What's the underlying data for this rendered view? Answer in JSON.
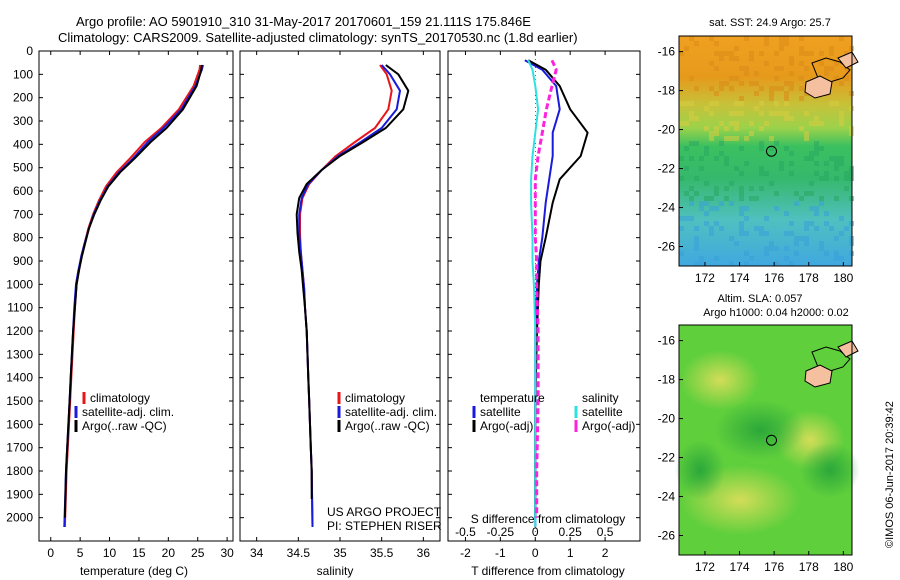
{
  "header": {
    "line1": "Argo profile: AO 5901910_310 31-May-2017 20170601_159 21.111S 175.846E",
    "line2": "Climatology: CARS2009. Satellite-adjusted climatology: synTS_20170530.nc (1.8d earlier)"
  },
  "colors": {
    "climatology": "#e8161a",
    "satellite": "#1a1adc",
    "argo": "#000000",
    "sat_salinity": "#2fe0e0",
    "argo_salinity": "#ff22dd"
  },
  "panels": {
    "temperature": {
      "xlabel": "temperature (deg C)",
      "legend": [
        "climatology",
        "satellite-adj. clim.",
        "Argo(..raw -QC)"
      ]
    },
    "salinity": {
      "xlabel": "salinity",
      "legend": [
        "climatology",
        "satellite-adj. clim.",
        "Argo(..raw -QC)"
      ],
      "credit1": "US ARGO PROJECT",
      "credit2": "PI: STEPHEN RISER"
    },
    "difference": {
      "xlabel": "T difference from climatology",
      "top_label": "S difference from climatology",
      "legend_temp_title": "temperature",
      "legend_sal_title": "salinity",
      "legend_items": [
        "satellite",
        "Argo(-adj)",
        "satellite",
        "Argo(-adj)"
      ]
    }
  },
  "maps": {
    "sst": {
      "title": "sat. SST: 24.9  Argo: 25.7"
    },
    "sla": {
      "title1": "Altim. SLA: 0.057",
      "title2": "Argo h1000: 0.04 h2000: 0.02"
    },
    "lat_ticks": [
      "-16",
      "-18",
      "-20",
      "-22",
      "-24",
      "-26"
    ],
    "lon_ticks": [
      "172",
      "174",
      "176",
      "178",
      "180"
    ],
    "argo_lat": -21.111,
    "argo_lon": 175.846
  },
  "footer": {
    "stamp": "©IMOS 06-Jun-2017 20:39:42"
  },
  "chart_data": [
    {
      "type": "line",
      "title": "",
      "xlabel": "temperature (deg C)",
      "ylabel": "",
      "xlim": [
        -2,
        31
      ],
      "ylim": [
        2100,
        0
      ],
      "xticks": [
        0,
        5,
        10,
        15,
        20,
        25,
        30
      ],
      "yticks": [
        0,
        100,
        200,
        300,
        400,
        500,
        600,
        700,
        800,
        900,
        1000,
        1100,
        1200,
        1300,
        1400,
        1500,
        1600,
        1700,
        1800,
        1900,
        2000
      ],
      "series": [
        {
          "name": "climatology",
          "color": "#e8161a",
          "x": [
            25.4,
            25.3,
            24.3,
            21.8,
            18.8,
            16.0,
            13.5,
            11.2,
            9.4,
            8.2,
            7.2,
            6.4,
            5.8,
            5.2,
            4.8,
            4.4,
            4.1,
            3.9,
            3.7,
            3.5,
            3.3,
            3.1,
            2.9,
            2.7,
            2.4
          ],
          "y": [
            60,
            80,
            150,
            250,
            330,
            390,
            460,
            520,
            580,
            640,
            700,
            760,
            820,
            880,
            940,
            1000,
            1100,
            1200,
            1300,
            1400,
            1500,
            1600,
            1700,
            1800,
            2040
          ]
        },
        {
          "name": "satellite-adj. clim.",
          "color": "#1a1adc",
          "x": [
            25.9,
            25.7,
            24.6,
            22.2,
            19.2,
            16.5,
            14.0,
            11.6,
            9.7,
            8.4,
            7.3,
            6.5,
            5.8,
            5.2,
            4.7,
            4.3,
            4.0,
            3.8,
            3.6,
            3.4,
            3.2,
            3.0,
            2.8,
            2.6,
            2.3
          ],
          "y": [
            60,
            80,
            150,
            250,
            330,
            390,
            460,
            520,
            580,
            640,
            700,
            760,
            820,
            880,
            940,
            1000,
            1100,
            1200,
            1300,
            1400,
            1500,
            1600,
            1700,
            1800,
            2040
          ]
        },
        {
          "name": "Argo(..raw -QC)",
          "color": "#000000",
          "x": [
            25.7,
            25.6,
            24.8,
            22.5,
            19.7,
            17.0,
            14.3,
            11.8,
            9.8,
            8.5,
            7.4,
            6.5,
            5.9,
            5.3,
            4.8,
            4.4,
            4.1,
            3.8,
            3.6,
            3.4,
            3.2,
            3.0,
            2.8,
            2.6,
            2.4
          ],
          "y": [
            60,
            80,
            150,
            250,
            330,
            390,
            460,
            520,
            580,
            640,
            700,
            760,
            820,
            880,
            940,
            1000,
            1100,
            1200,
            1300,
            1400,
            1500,
            1600,
            1700,
            1800,
            2000
          ]
        }
      ]
    },
    {
      "type": "line",
      "title": "",
      "xlabel": "salinity",
      "ylabel": "",
      "xlim": [
        33.8,
        36.2
      ],
      "ylim": [
        2100,
        0
      ],
      "xticks": [
        34,
        34.5,
        35,
        35.5,
        36
      ],
      "series": [
        {
          "name": "climatology",
          "color": "#e8161a",
          "x": [
            35.48,
            35.56,
            35.62,
            35.58,
            35.42,
            35.18,
            34.95,
            34.78,
            34.63,
            34.55,
            34.52,
            34.52,
            34.53,
            34.55,
            34.57,
            34.58,
            34.6,
            34.61,
            34.62,
            34.63,
            34.64,
            34.65,
            34.66,
            34.67
          ],
          "y": [
            60,
            100,
            170,
            250,
            330,
            390,
            450,
            510,
            570,
            630,
            700,
            780,
            860,
            940,
            1020,
            1100,
            1200,
            1300,
            1400,
            1500,
            1600,
            1700,
            1800,
            2040
          ]
        },
        {
          "name": "satellite-adj. clim.",
          "color": "#1a1adc",
          "x": [
            35.5,
            35.6,
            35.72,
            35.68,
            35.5,
            35.25,
            34.98,
            34.78,
            34.62,
            34.54,
            34.51,
            34.51,
            34.53,
            34.55,
            34.57,
            34.58,
            34.6,
            34.61,
            34.62,
            34.63,
            34.64,
            34.65,
            34.66,
            34.67
          ],
          "y": [
            60,
            100,
            170,
            250,
            330,
            390,
            450,
            510,
            570,
            630,
            700,
            780,
            860,
            940,
            1020,
            1100,
            1200,
            1300,
            1400,
            1500,
            1600,
            1700,
            1800,
            2040
          ]
        },
        {
          "name": "Argo(..raw -QC)",
          "color": "#000000",
          "x": [
            35.55,
            35.7,
            35.82,
            35.76,
            35.55,
            35.28,
            35.0,
            34.78,
            34.6,
            34.51,
            34.48,
            34.49,
            34.51,
            34.54,
            34.56,
            34.58,
            34.6,
            34.61,
            34.62,
            34.63,
            34.64,
            34.65,
            34.66,
            34.66
          ],
          "y": [
            60,
            100,
            170,
            250,
            330,
            390,
            450,
            510,
            570,
            630,
            700,
            780,
            860,
            940,
            1020,
            1100,
            1200,
            1300,
            1400,
            1500,
            1600,
            1700,
            1800,
            1920
          ]
        }
      ]
    },
    {
      "type": "line",
      "title": "",
      "xlabel": "T difference from climatology",
      "ylabel": "",
      "xlim": [
        -2.5,
        3
      ],
      "ylim": [
        2100,
        0
      ],
      "xticks": [
        -2,
        -1,
        0,
        1,
        2
      ],
      "top_xlabel": "S difference from climatology",
      "top_xticks": [
        -0.5,
        -0.25,
        0,
        0.25,
        0.5
      ],
      "series": [
        {
          "name": "temperature satellite",
          "color": "#1a1adc",
          "x": [
            -0.3,
            0.2,
            0.6,
            0.7,
            0.5,
            0.5,
            0.4,
            0.3,
            0.2,
            0.1,
            0.05,
            0.0,
            0.0,
            0.0,
            0.0
          ],
          "y": [
            40,
            80,
            150,
            250,
            350,
            450,
            550,
            650,
            800,
            900,
            1000,
            1200,
            1500,
            1800,
            2040
          ]
        },
        {
          "name": "temperature Argo(-adj)",
          "color": "#000000",
          "x": [
            -0.2,
            0.3,
            0.7,
            1.0,
            1.5,
            1.3,
            0.7,
            0.5,
            0.3,
            0.15,
            0.1,
            0.05,
            0.0,
            0.0,
            0.0
          ],
          "y": [
            40,
            80,
            150,
            250,
            350,
            450,
            550,
            650,
            800,
            900,
            1000,
            1200,
            1500,
            1800,
            2000
          ]
        },
        {
          "name": "salinity satellite",
          "color": "#2fe0e0",
          "x": [
            -0.05,
            -0.02,
            0.0,
            0.02,
            0.0,
            -0.02,
            -0.03,
            -0.03,
            -0.02,
            -0.02,
            -0.01,
            0.0,
            0.0,
            0.0,
            0.0
          ],
          "y": [
            40,
            80,
            150,
            250,
            350,
            450,
            550,
            650,
            800,
            900,
            1000,
            1200,
            1500,
            1800,
            2040
          ]
        },
        {
          "name": "salinity Argo(-adj)",
          "color": "#ff22dd",
          "x": [
            0.12,
            0.15,
            0.12,
            0.08,
            0.05,
            0.02,
            0.0,
            0.0,
            0.0,
            0.01,
            0.01,
            0.02,
            0.02,
            0.01,
            0.01
          ],
          "y": [
            40,
            80,
            150,
            250,
            350,
            450,
            550,
            650,
            800,
            900,
            1000,
            1200,
            1500,
            1800,
            2000
          ]
        }
      ]
    },
    {
      "type": "heatmap",
      "title": "sat. SST: 24.9  Argo: 25.7",
      "xlim": [
        170.5,
        180.5
      ],
      "ylim": [
        -27,
        -15.2
      ],
      "xticks": [
        172,
        174,
        176,
        178,
        180
      ],
      "yticks": [
        -16,
        -18,
        -20,
        -22,
        -24,
        -26
      ]
    },
    {
      "type": "heatmap",
      "title": "Altim. SLA: 0.057",
      "xlim": [
        170.5,
        180.5
      ],
      "ylim": [
        -27,
        -15.2
      ],
      "xticks": [
        172,
        174,
        176,
        178,
        180
      ],
      "yticks": [
        -16,
        -18,
        -20,
        -22,
        -24,
        -26
      ]
    }
  ]
}
